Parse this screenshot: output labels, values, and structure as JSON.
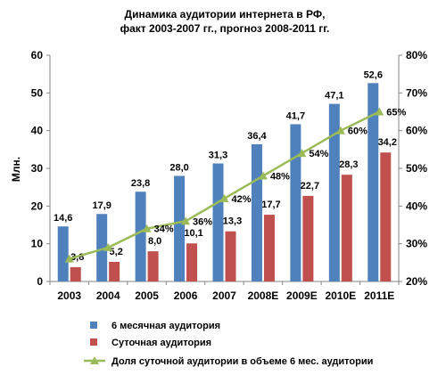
{
  "chart_data": {
    "type": "bar",
    "title": "Динамика аудитории интернета в РФ,",
    "subtitle": "факт 2003-2007 гг., прогноз 2008-2011 гг.",
    "ylabel": "Млн.",
    "ylim": [
      0,
      60
    ],
    "yticks": [
      0,
      10,
      20,
      30,
      40,
      50,
      60
    ],
    "y2lim": [
      20,
      80
    ],
    "y2ticks": [
      "20%",
      "30%",
      "40%",
      "50%",
      "60%",
      "70%",
      "80%"
    ],
    "categories": [
      "2003",
      "2004",
      "2005",
      "2006",
      "2007",
      "2008E",
      "2009E",
      "2010E",
      "2011E"
    ],
    "grid": false,
    "legend_position": "bottom",
    "series": [
      {
        "name": "6 месячная аудитория",
        "kind": "bar",
        "color": "#4F81BD",
        "values": [
          14.6,
          17.9,
          23.8,
          28.0,
          31.3,
          36.4,
          41.7,
          47.1,
          52.6
        ],
        "labels": [
          "14,6",
          "17,9",
          "23,8",
          "28,0",
          "31,3",
          "36,4",
          "41,7",
          "47,1",
          "52,6"
        ]
      },
      {
        "name": "Суточная аудитория",
        "kind": "bar",
        "color": "#C0504D",
        "values": [
          3.8,
          5.2,
          8.0,
          10.1,
          13.3,
          17.7,
          22.7,
          28.3,
          34.2
        ],
        "labels": [
          "3,8",
          "5,2",
          "8,0",
          "10,1",
          "13,3",
          "17,7",
          "22,7",
          "28,3",
          "34,2"
        ]
      },
      {
        "name": "Доля суточной аудитории в объеме 6 мес. аудитории",
        "kind": "line",
        "axis": "right",
        "color": "#9BBB59",
        "values": [
          26,
          29,
          34,
          36,
          42,
          48,
          54,
          60,
          65
        ],
        "labels": [
          "",
          "",
          "34%",
          "36%",
          "42%",
          "48%",
          "54%",
          "60%",
          "65%"
        ]
      }
    ]
  }
}
